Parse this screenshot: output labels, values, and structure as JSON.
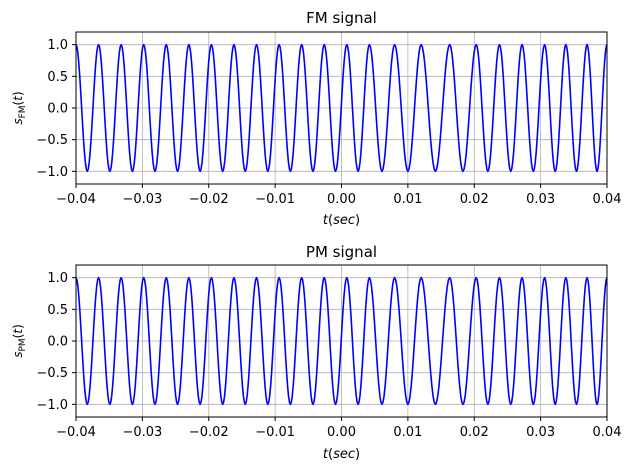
{
  "chart_data": [
    {
      "type": "line",
      "title": "FM signal",
      "xlabel": "t(sec)",
      "ylabel": "s_FM(t)",
      "xlim": [
        -0.04,
        0.04
      ],
      "ylim": [
        -1.2,
        1.2
      ],
      "xticks": [
        -0.04,
        -0.03,
        -0.02,
        -0.01,
        0.0,
        0.01,
        0.02,
        0.03,
        0.04
      ],
      "xtick_labels": [
        "−0.04",
        "−0.03",
        "−0.02",
        "−0.01",
        "0.00",
        "0.01",
        "0.02",
        "0.03",
        "0.04"
      ],
      "yticks": [
        -1.0,
        -0.5,
        0.0,
        0.5,
        1.0
      ],
      "ytick_labels": [
        "−1.0",
        "−0.5",
        "0.0",
        "0.5",
        "1.0"
      ],
      "grid": true,
      "series": [
        {
          "color": "#0000ff",
          "peak_times": [
            -0.04,
            -0.0366,
            -0.0332,
            -0.0298,
            -0.0264,
            -0.023,
            -0.0196,
            -0.0162,
            -0.0128,
            -0.0094,
            -0.006,
            -0.0026,
            0.0008,
            0.0042,
            0.008,
            0.012,
            0.0163,
            0.0203,
            0.0238,
            0.0272,
            0.0306,
            0.0338,
            0.037,
            0.04
          ]
        }
      ]
    },
    {
      "type": "line",
      "title": "PM signal",
      "xlabel": "t(sec)",
      "ylabel": "s_PM(t)",
      "xlim": [
        -0.04,
        0.04
      ],
      "ylim": [
        -1.2,
        1.2
      ],
      "xticks": [
        -0.04,
        -0.03,
        -0.02,
        -0.01,
        0.0,
        0.01,
        0.02,
        0.03,
        0.04
      ],
      "xtick_labels": [
        "−0.04",
        "−0.03",
        "−0.02",
        "−0.01",
        "0.00",
        "0.01",
        "0.02",
        "0.03",
        "0.04"
      ],
      "yticks": [
        -1.0,
        -0.5,
        0.0,
        0.5,
        1.0
      ],
      "ytick_labels": [
        "−1.0",
        "−0.5",
        "0.0",
        "0.5",
        "1.0"
      ],
      "grid": true,
      "series": [
        {
          "color": "#0000ff",
          "peak_times": [
            -0.04,
            -0.0366,
            -0.0332,
            -0.0298,
            -0.0264,
            -0.023,
            -0.0196,
            -0.0162,
            -0.0128,
            -0.0094,
            -0.006,
            -0.0026,
            0.0008,
            0.0042,
            0.008,
            0.012,
            0.0163,
            0.0203,
            0.0238,
            0.0272,
            0.0306,
            0.0338,
            0.037,
            0.04
          ]
        }
      ]
    }
  ]
}
